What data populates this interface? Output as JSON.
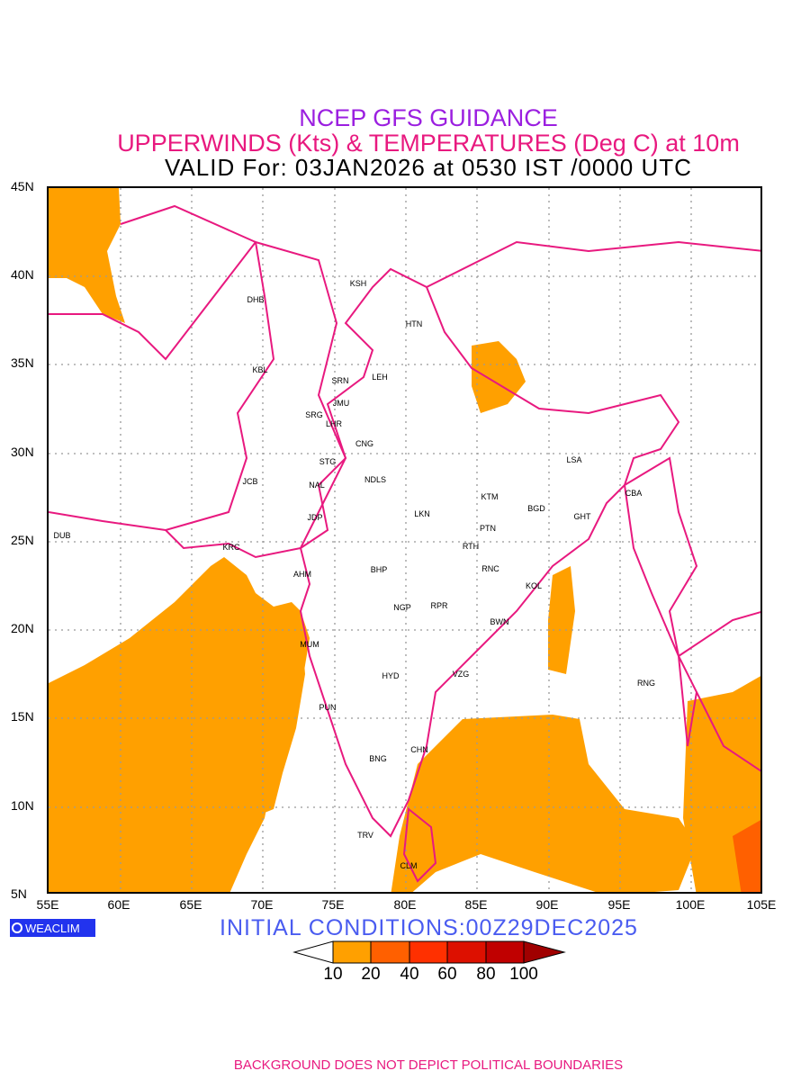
{
  "header": {
    "line1": "NCEP GFS GUIDANCE",
    "line2": "UPPERWINDS (Kts) & TEMPERATURES (Deg C) at 10m",
    "line3": "VALID For: 03JAN2026 at 0530 IST /0000 UTC"
  },
  "axes": {
    "lat_labels": [
      "45N",
      "40N",
      "35N",
      "30N",
      "25N",
      "20N",
      "15N",
      "10N",
      "5N"
    ],
    "lon_labels": [
      "55E",
      "60E",
      "65E",
      "70E",
      "75E",
      "80E",
      "85E",
      "90E",
      "95E",
      "100E",
      "105E"
    ]
  },
  "stations": [
    "KSH",
    "DHB",
    "HTN",
    "KBL",
    "SRN",
    "LEH",
    "JMU",
    "SRG",
    "LHR",
    "CNG",
    "STG",
    "LSA",
    "JCB",
    "NAL",
    "NDLS",
    "KTM",
    "CBA",
    "BGD",
    "GHT",
    "JDP",
    "LKN",
    "PTN",
    "DUB",
    "KRC",
    "RTH",
    "RNC",
    "AHM",
    "BHP",
    "KOL",
    "NGP",
    "RPR",
    "BWN",
    "MUM",
    "HYD",
    "VZG",
    "RNG",
    "PUN",
    "CHN",
    "BNG",
    "TRV",
    "CLM"
  ],
  "logo": "WEACLIM",
  "initial_conditions": "INITIAL CONDITIONS:00Z29DEC2025",
  "colorbar": {
    "labels": [
      "10",
      "20",
      "40",
      "60",
      "80",
      "100"
    ],
    "colors": [
      "#ffffff",
      "#ffa000",
      "#ff6000",
      "#ff3000",
      "#dd1000",
      "#c00000",
      "#a00000"
    ]
  },
  "footer": "BACKGROUND DOES NOT DEPICT POLITICAL BOUNDARIES",
  "colors": {
    "shade": "#ffa000",
    "boundary": "#e8197f",
    "grid": "#999999",
    "temp_text": "#3344ff"
  }
}
